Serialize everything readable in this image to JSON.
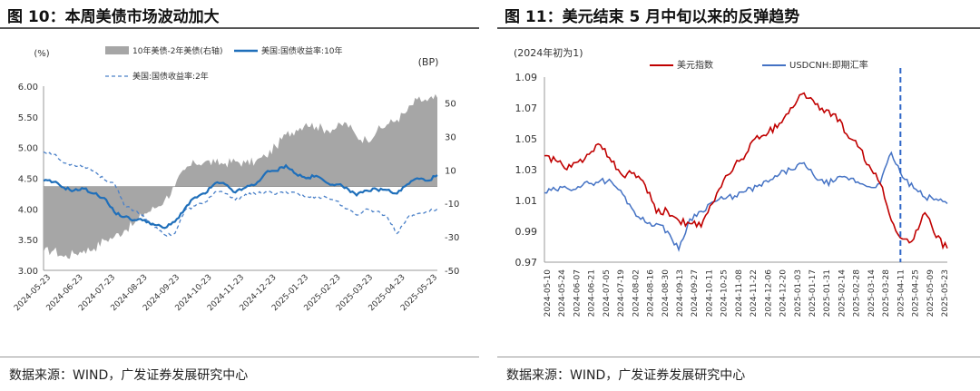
{
  "left": {
    "fig_title": "图 10：本周美债市场波动加大",
    "source": "数据来源：WIND，广发证券发展研究中心"
  },
  "right": {
    "fig_title": "图 11：美元结束 5 月中旬以来的反弹趋势",
    "source": "数据来源：WIND，广发证券发展研究中心"
  },
  "colors": {
    "spread": "#a6a6a6",
    "ust10": "#1f6fba",
    "ust2": "#4a80c8",
    "dxy": "#c00000",
    "cnh": "#4472c4",
    "marker": "#2e66c7"
  },
  "chart_data": [
    {
      "type": "line",
      "title": "",
      "ylabel_left": "(%)",
      "ylabel_right": "(BP)",
      "ylim": [
        3.0,
        6.0
      ],
      "y_ticks": [
        "3.00",
        "3.50",
        "4.00",
        "4.50",
        "5.00",
        "5.50",
        "6.00"
      ],
      "ylim_right": [
        -50,
        60
      ],
      "y_ticks_right": [
        "-50",
        "-30",
        "-10",
        "10",
        "30",
        "50"
      ],
      "x_ticks": [
        "2024-05-23",
        "2024-06-23",
        "2024-07-23",
        "2024-08-23",
        "2024-09-23",
        "2024-10-23",
        "2024-11-23",
        "2024-12-23",
        "2025-01-23",
        "2025-02-23",
        "2025-03-23",
        "2025-04-23",
        "2025-05-23"
      ],
      "series": [
        {
          "name": "10年美债-2年美债(右轴)",
          "style": "area",
          "axis": "right",
          "values": [
            -39,
            -38,
            -42,
            -40,
            -38,
            -37,
            -32,
            -30,
            -26,
            -22,
            -16,
            -13,
            -8,
            0,
            10,
            14,
            15,
            14,
            14,
            15,
            14,
            15,
            18,
            24,
            31,
            34,
            38,
            36,
            34,
            35,
            38,
            30,
            28,
            33,
            37,
            40,
            45,
            52,
            51,
            53
          ]
        },
        {
          "name": "美国:国债收益率:10年",
          "style": "solid",
          "axis": "left",
          "values": [
            4.46,
            4.44,
            4.35,
            4.3,
            4.33,
            4.25,
            4.18,
            3.95,
            3.87,
            3.82,
            3.82,
            3.74,
            3.69,
            3.79,
            4.01,
            4.19,
            4.25,
            4.42,
            4.4,
            4.27,
            4.35,
            4.4,
            4.59,
            4.62,
            4.71,
            4.57,
            4.5,
            4.54,
            4.43,
            4.4,
            4.35,
            4.22,
            4.3,
            4.32,
            4.31,
            4.25,
            4.4,
            4.5,
            4.46,
            4.55
          ]
        },
        {
          "name": "美国:国债收益率:2年",
          "style": "dashed",
          "axis": "left",
          "values": [
            4.93,
            4.89,
            4.75,
            4.72,
            4.7,
            4.62,
            4.48,
            4.42,
            4.05,
            3.98,
            3.87,
            3.7,
            3.58,
            3.6,
            3.98,
            4.05,
            4.11,
            4.28,
            4.25,
            4.15,
            4.24,
            4.24,
            4.28,
            4.24,
            4.28,
            4.27,
            4.19,
            4.2,
            4.19,
            4.13,
            4.0,
            3.9,
            4.0,
            3.96,
            3.88,
            3.6,
            3.85,
            3.92,
            3.96,
            4.0
          ]
        }
      ]
    },
    {
      "type": "line",
      "title": "",
      "ylabel": "(2024年初为1)",
      "ylim": [
        0.97,
        1.09
      ],
      "y_ticks": [
        "0.97",
        "0.99",
        "1.01",
        "1.03",
        "1.05",
        "1.07",
        "1.09"
      ],
      "x_ticks": [
        "2024-05-10",
        "2024-05-24",
        "2024-06-07",
        "2024-06-21",
        "2024-07-05",
        "2024-07-19",
        "2024-08-02",
        "2024-08-16",
        "2024-08-30",
        "2024-09-13",
        "2024-09-27",
        "2024-10-11",
        "2024-10-25",
        "2024-11-08",
        "2024-11-22",
        "2024-12-06",
        "2024-12-20",
        "2025-01-03",
        "2025-01-17",
        "2025-01-31",
        "2025-02-14",
        "2025-02-28",
        "2025-03-14",
        "2025-03-28",
        "2025-04-11",
        "2025-04-25",
        "2025-05-09",
        "2025-05-23"
      ],
      "marker_date": "2025-04-09",
      "series": [
        {
          "name": "美元指数",
          "style": "solid",
          "values": [
            1.039,
            1.036,
            1.03,
            1.035,
            1.04,
            1.046,
            1.035,
            1.026,
            1.028,
            1.02,
            1.002,
            1.003,
            0.997,
            0.995,
            0.993,
            1.008,
            1.023,
            1.033,
            1.04,
            1.052,
            1.054,
            1.06,
            1.07,
            1.079,
            1.075,
            1.067,
            1.066,
            1.053,
            1.045,
            1.033,
            1.021,
            0.997,
            0.985,
            0.985,
            1.002,
            0.986,
            0.979
          ]
        },
        {
          "name": "USDCNH:即期汇率",
          "style": "solid",
          "values": [
            1.015,
            1.017,
            1.018,
            1.019,
            1.021,
            1.023,
            1.022,
            1.014,
            1.003,
            0.996,
            0.995,
            0.99,
            0.978,
            0.998,
            1.003,
            1.009,
            1.011,
            1.013,
            1.016,
            1.019,
            1.022,
            1.027,
            1.03,
            1.034,
            1.027,
            1.021,
            1.023,
            1.025,
            1.022,
            1.019,
            1.021,
            1.041,
            1.025,
            1.018,
            1.012,
            1.011,
            1.008
          ]
        }
      ]
    }
  ]
}
